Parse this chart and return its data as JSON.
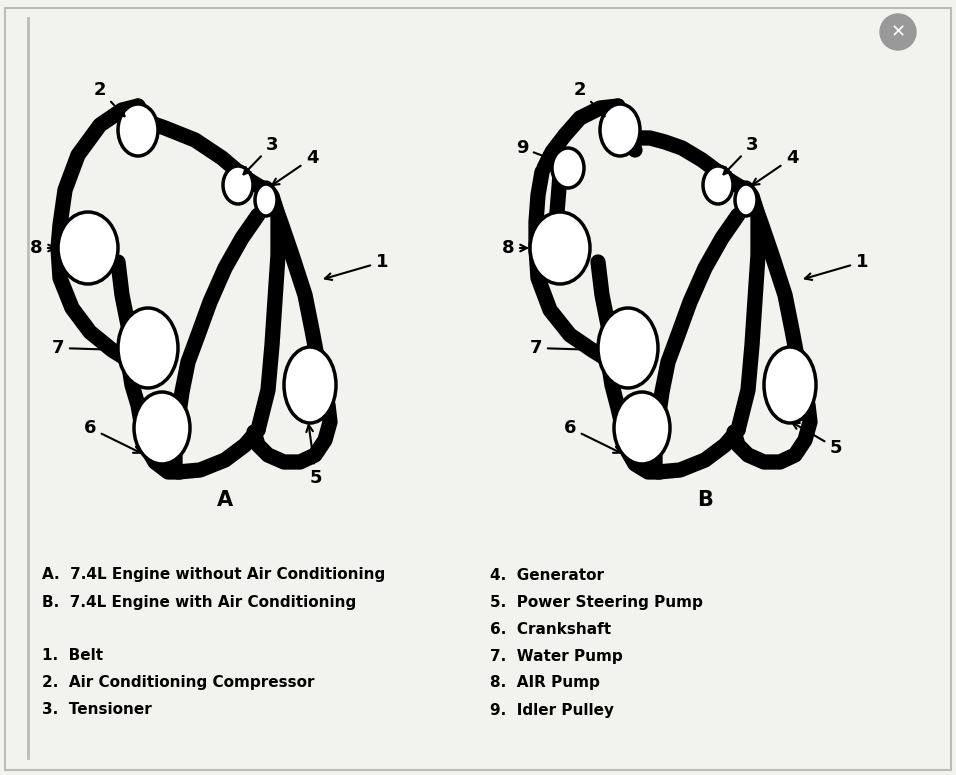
{
  "bg_color": "#f2f2ee",
  "diagram_A_label": "A",
  "diagram_B_label": "B",
  "legend_left": [
    "A.  7.4L Engine without Air Conditioning",
    "B.  7.4L Engine with Air Conditioning",
    "",
    "1.  Belt",
    "2.  Air Conditioning Compressor",
    "3.  Tensioner"
  ],
  "legend_right": [
    "4.  Generator",
    "5.  Power Steering Pump",
    "6.  Crankshaft",
    "7.  Water Pump",
    "8.  AIR Pump",
    "9.  Idler Pulley"
  ],
  "font_family": "DejaVu Sans",
  "A_pulleys": {
    "2": [
      138,
      130,
      20,
      26
    ],
    "8": [
      88,
      248,
      30,
      36
    ],
    "7": [
      148,
      348,
      30,
      40
    ],
    "6": [
      162,
      428,
      28,
      36
    ],
    "3": [
      238,
      185,
      15,
      19
    ],
    "4": [
      266,
      200,
      11,
      16
    ],
    "5": [
      310,
      385,
      26,
      38
    ]
  },
  "B_pulleys": {
    "2": [
      620,
      130,
      20,
      26
    ],
    "9": [
      568,
      168,
      16,
      20
    ],
    "8": [
      560,
      248,
      30,
      36
    ],
    "7": [
      628,
      348,
      30,
      40
    ],
    "6": [
      642,
      428,
      28,
      36
    ],
    "3": [
      718,
      185,
      15,
      19
    ],
    "4": [
      746,
      200,
      11,
      16
    ],
    "5": [
      790,
      385,
      26,
      38
    ]
  },
  "A_annotations": [
    [
      "2",
      [
        128,
        120
      ],
      [
        100,
        90
      ]
    ],
    [
      "3",
      [
        240,
        178
      ],
      [
        272,
        145
      ]
    ],
    [
      "4",
      [
        268,
        188
      ],
      [
        312,
        158
      ]
    ],
    [
      "1",
      [
        320,
        280
      ],
      [
        382,
        262
      ]
    ],
    [
      "8",
      [
        60,
        248
      ],
      [
        36,
        248
      ]
    ],
    [
      "7",
      [
        122,
        350
      ],
      [
        58,
        348
      ]
    ],
    [
      "6",
      [
        145,
        455
      ],
      [
        90,
        428
      ]
    ],
    [
      "5",
      [
        308,
        420
      ],
      [
        316,
        478
      ]
    ]
  ],
  "B_annotations": [
    [
      "2",
      [
        608,
        120
      ],
      [
        580,
        90
      ]
    ],
    [
      "9",
      [
        554,
        160
      ],
      [
        522,
        148
      ]
    ],
    [
      "3",
      [
        720,
        178
      ],
      [
        752,
        145
      ]
    ],
    [
      "4",
      [
        748,
        188
      ],
      [
        792,
        158
      ]
    ],
    [
      "1",
      [
        800,
        280
      ],
      [
        862,
        262
      ]
    ],
    [
      "8",
      [
        532,
        248
      ],
      [
        508,
        248
      ]
    ],
    [
      "7",
      [
        600,
        350
      ],
      [
        536,
        348
      ]
    ],
    [
      "6",
      [
        625,
        455
      ],
      [
        570,
        428
      ]
    ],
    [
      "5",
      [
        788,
        420
      ],
      [
        836,
        448
      ]
    ]
  ]
}
